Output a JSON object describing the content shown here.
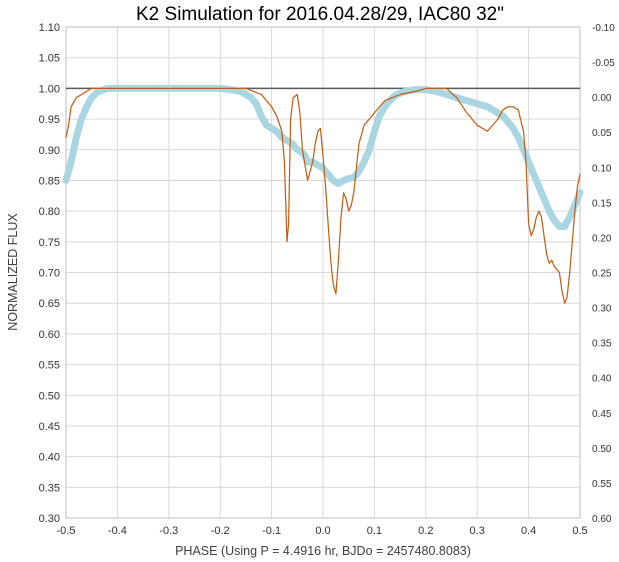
{
  "chart_data": {
    "type": "line",
    "title": "K2 Simulation for 2016.04.28/29, IAC80 32\"",
    "xlabel": "PHASE (Using P = 4.4916 hr, BJDo = 2457480.8083)",
    "ylabel": "NORMALIZED FLUX",
    "xlim": [
      -0.5,
      0.5
    ],
    "ylim": [
      0.3,
      1.1
    ],
    "y2lim": [
      -0.1,
      0.6
    ],
    "y2_inverted": true,
    "xticks": [
      "-0.5",
      "-0.4",
      "-0.3",
      "-0.2",
      "-0.1",
      "0.0",
      "0.1",
      "0.2",
      "0.3",
      "0.4",
      "0.5"
    ],
    "yticks": [
      "0.30",
      "0.35",
      "0.40",
      "0.45",
      "0.50",
      "0.55",
      "0.60",
      "0.65",
      "0.70",
      "0.75",
      "0.80",
      "0.85",
      "0.90",
      "0.95",
      "1.00",
      "1.05",
      "1.10"
    ],
    "y2ticks": [
      "-0.10",
      "-0.05",
      "0.00",
      "0.05",
      "0.10",
      "0.15",
      "0.20",
      "0.25",
      "0.30",
      "0.35",
      "0.40",
      "0.45",
      "0.50",
      "0.55",
      "0.60"
    ],
    "grid": true,
    "legend": "none",
    "reference_line": {
      "y": 1.0,
      "color": "#595959"
    },
    "series": [
      {
        "color": "#c55a11",
        "style": "thin-line",
        "axis": "left",
        "x": [
          -0.5,
          -0.495,
          -0.49,
          -0.48,
          -0.47,
          -0.46,
          -0.45,
          -0.4,
          -0.3,
          -0.2,
          -0.15,
          -0.12,
          -0.1,
          -0.09,
          -0.08,
          -0.075,
          -0.07,
          -0.067,
          -0.063,
          -0.058,
          -0.05,
          -0.045,
          -0.04,
          -0.03,
          -0.02,
          -0.015,
          -0.01,
          -0.005,
          0.0,
          0.005,
          0.01,
          0.015,
          0.02,
          0.025,
          0.03,
          0.035,
          0.04,
          0.045,
          0.05,
          0.055,
          0.06,
          0.065,
          0.07,
          0.08,
          0.09,
          0.1,
          0.12,
          0.15,
          0.18,
          0.2,
          0.24,
          0.26,
          0.28,
          0.3,
          0.32,
          0.34,
          0.35,
          0.36,
          0.37,
          0.38,
          0.39,
          0.395,
          0.4,
          0.405,
          0.41,
          0.415,
          0.42,
          0.425,
          0.43,
          0.435,
          0.44,
          0.445,
          0.45,
          0.46,
          0.465,
          0.47,
          0.475,
          0.48,
          0.485,
          0.49,
          0.495,
          0.5
        ],
        "y": [
          0.92,
          0.94,
          0.97,
          0.985,
          0.99,
          0.995,
          1.0,
          1.0,
          1.0,
          1.0,
          1.0,
          0.99,
          0.97,
          0.955,
          0.93,
          0.88,
          0.75,
          0.78,
          0.95,
          0.985,
          0.99,
          0.96,
          0.9,
          0.85,
          0.88,
          0.91,
          0.93,
          0.935,
          0.89,
          0.84,
          0.78,
          0.72,
          0.68,
          0.665,
          0.72,
          0.79,
          0.83,
          0.82,
          0.8,
          0.81,
          0.83,
          0.87,
          0.91,
          0.94,
          0.95,
          0.96,
          0.98,
          0.99,
          0.995,
          1.0,
          1.0,
          0.985,
          0.96,
          0.94,
          0.93,
          0.95,
          0.965,
          0.97,
          0.97,
          0.965,
          0.93,
          0.88,
          0.78,
          0.76,
          0.77,
          0.79,
          0.8,
          0.79,
          0.76,
          0.73,
          0.715,
          0.72,
          0.71,
          0.7,
          0.67,
          0.65,
          0.66,
          0.7,
          0.75,
          0.8,
          0.84,
          0.86
        ]
      },
      {
        "color": "#a9d6e0",
        "style": "thick-line",
        "axis": "left",
        "x": [
          -0.5,
          -0.49,
          -0.48,
          -0.47,
          -0.46,
          -0.45,
          -0.44,
          -0.43,
          -0.42,
          -0.4,
          -0.3,
          -0.2,
          -0.18,
          -0.16,
          -0.15,
          -0.14,
          -0.13,
          -0.12,
          -0.11,
          -0.1,
          -0.09,
          -0.08,
          -0.07,
          -0.06,
          -0.05,
          -0.04,
          -0.035,
          -0.03,
          -0.02,
          -0.01,
          0.0,
          0.01,
          0.02,
          0.03,
          0.04,
          0.05,
          0.06,
          0.07,
          0.08,
          0.09,
          0.1,
          0.11,
          0.12,
          0.13,
          0.14,
          0.15,
          0.16,
          0.18,
          0.2,
          0.22,
          0.24,
          0.26,
          0.28,
          0.3,
          0.32,
          0.34,
          0.35,
          0.36,
          0.37,
          0.38,
          0.39,
          0.4,
          0.41,
          0.42,
          0.43,
          0.44,
          0.45,
          0.46,
          0.47,
          0.48,
          0.49,
          0.5
        ],
        "y": [
          0.85,
          0.88,
          0.92,
          0.95,
          0.97,
          0.985,
          0.993,
          0.997,
          1.0,
          1.0,
          1.0,
          1.0,
          0.998,
          0.995,
          0.99,
          0.985,
          0.975,
          0.955,
          0.94,
          0.935,
          0.93,
          0.92,
          0.915,
          0.91,
          0.9,
          0.895,
          0.89,
          0.88,
          0.88,
          0.875,
          0.87,
          0.86,
          0.85,
          0.845,
          0.85,
          0.853,
          0.855,
          0.865,
          0.88,
          0.9,
          0.93,
          0.955,
          0.97,
          0.98,
          0.988,
          0.992,
          0.995,
          0.998,
          0.998,
          0.995,
          0.99,
          0.985,
          0.98,
          0.975,
          0.97,
          0.96,
          0.955,
          0.945,
          0.935,
          0.92,
          0.9,
          0.88,
          0.86,
          0.84,
          0.82,
          0.8,
          0.785,
          0.775,
          0.775,
          0.79,
          0.81,
          0.83
        ]
      }
    ]
  }
}
